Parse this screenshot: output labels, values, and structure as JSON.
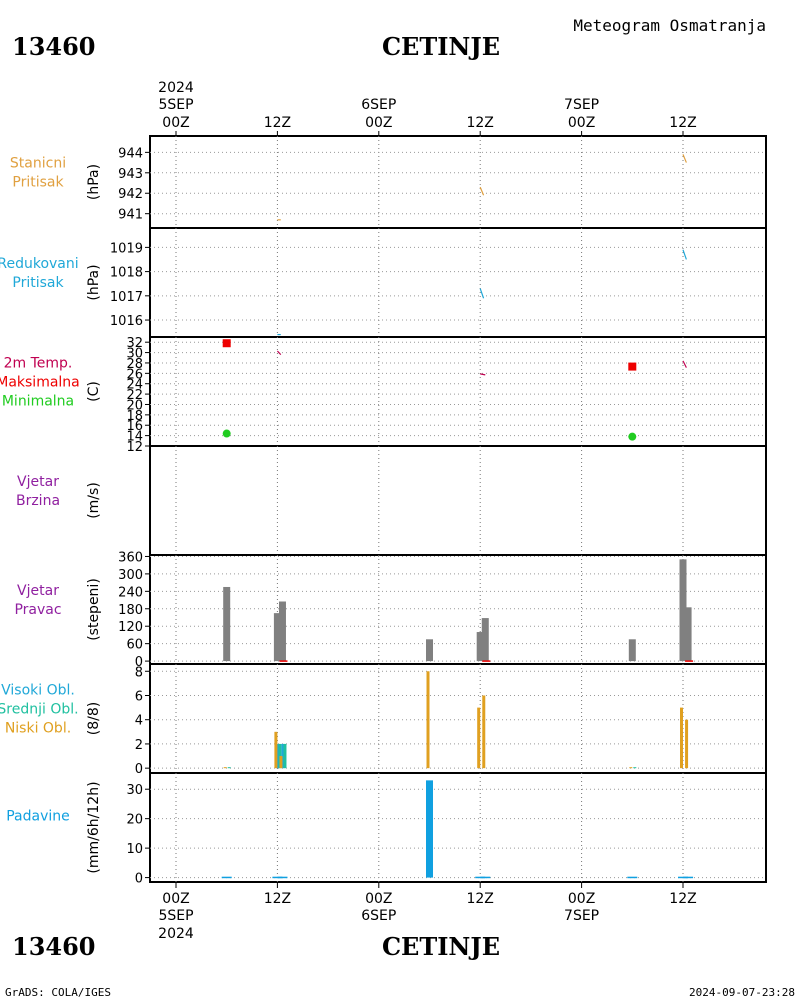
{
  "header": {
    "station_id": "13460",
    "station_name": "CETINJE",
    "product_title": "Meteogram Osmatranja"
  },
  "footer": {
    "station_id": "13460",
    "station_name": "CETINJE",
    "credit": "GrADS: COLA/IGES",
    "timestamp": "2024-09-07-23:28"
  },
  "time_axis": {
    "top_labels": [
      {
        "line1": "2024",
        "line2": "5SEP",
        "line3": "00Z"
      },
      {
        "line1": "",
        "line2": "",
        "line3": "12Z"
      },
      {
        "line1": "",
        "line2": "6SEP",
        "line3": "00Z"
      },
      {
        "line1": "",
        "line2": "",
        "line3": "12Z"
      },
      {
        "line1": "",
        "line2": "7SEP",
        "line3": "00Z"
      },
      {
        "line1": "",
        "line2": "",
        "line3": "12Z"
      }
    ],
    "bottom_labels": [
      {
        "line1": "00Z",
        "line2": "5SEP",
        "line3": "2024"
      },
      {
        "line1": "12Z",
        "line2": "",
        "line3": ""
      },
      {
        "line1": "00Z",
        "line2": "6SEP",
        "line3": ""
      },
      {
        "line1": "12Z",
        "line2": "",
        "line3": ""
      },
      {
        "line1": "00Z",
        "line2": "7SEP",
        "line3": ""
      },
      {
        "line1": "12Z",
        "line2": "",
        "line3": ""
      }
    ]
  },
  "colors": {
    "station_pressure": "#e0a040",
    "reduced_pressure": "#20a8d8",
    "temp_label": "#c00050",
    "temp_max": "#ee0000",
    "temp_min": "#20cc20",
    "wind": "#9020a0",
    "gray_bar": "#808080",
    "dir_marker": "#ee0000",
    "cloud_high": "#20a8d8",
    "cloud_mid": "#20c0a0",
    "cloud_low": "#e0a020",
    "precip": "#10a0e0"
  },
  "chart_data": [
    {
      "type": "line",
      "label_lines": [
        "Stanicni",
        "Pritisak"
      ],
      "ylabel": "(hPa)",
      "ylim": [
        940.3,
        944.8
      ],
      "yticks": [
        "941",
        "942",
        "943",
        "944"
      ],
      "series": [
        {
          "x": [
            12,
            12.4
          ],
          "values": [
            940.7,
            940.7
          ]
        },
        {
          "x": [
            36,
            36.4
          ],
          "values": [
            942.3,
            941.9
          ]
        },
        {
          "x": [
            60,
            60.4
          ],
          "values": [
            943.9,
            943.5
          ]
        }
      ]
    },
    {
      "type": "line",
      "label_lines": [
        "Redukovani",
        "Pritisak"
      ],
      "ylabel": "(hPa)",
      "ylim": [
        1015.3,
        1019.8
      ],
      "yticks": [
        "1016",
        "1017",
        "1018",
        "1019"
      ],
      "series": [
        {
          "x": [
            12,
            12.4
          ],
          "values": [
            1015.4,
            1015.4
          ]
        },
        {
          "x": [
            36,
            36.4
          ],
          "values": [
            1017.3,
            1016.9
          ]
        },
        {
          "x": [
            60,
            60.4
          ],
          "values": [
            1018.9,
            1018.5
          ]
        }
      ]
    },
    {
      "type": "scatter",
      "label_lines": [
        "2m Temp.",
        "Maksimalna",
        "Minimalna"
      ],
      "ylabel": "(C)",
      "ylim": [
        12,
        33
      ],
      "yticks": [
        "12",
        "14",
        "16",
        "18",
        "20",
        "22",
        "24",
        "26",
        "28",
        "30",
        "32"
      ],
      "line_segments": [
        {
          "x": [
            12,
            12.4
          ],
          "values": [
            30.3,
            29.6
          ]
        },
        {
          "x": [
            36,
            36.6
          ],
          "values": [
            25.9,
            25.7
          ]
        },
        {
          "x": [
            60,
            60.4
          ],
          "values": [
            28.4,
            27.1
          ]
        }
      ],
      "max_points": [
        {
          "x": 6,
          "value": 31.8
        },
        {
          "x": 54,
          "value": 27.3
        }
      ],
      "min_points": [
        {
          "x": 6,
          "value": 14.4
        },
        {
          "x": 54,
          "value": 13.8
        }
      ]
    },
    {
      "type": "bar",
      "label_lines": [
        "Vjetar",
        "Brzina"
      ],
      "ylabel": "(m/s)",
      "series": []
    },
    {
      "type": "bar",
      "label_lines": [
        "Vjetar",
        "Pravac"
      ],
      "ylabel": "(stepeni)",
      "ylim": [
        -10,
        365
      ],
      "yticks": [
        "0",
        "60",
        "120",
        "180",
        "240",
        "300",
        "360"
      ],
      "x": [
        6,
        12,
        12.6,
        30,
        36,
        36.6,
        54,
        60,
        60.6
      ],
      "values": [
        255,
        165,
        205,
        75,
        100,
        148,
        75,
        350,
        185
      ],
      "dir_markers_x": [
        12.6,
        36.6,
        60.6
      ]
    },
    {
      "type": "bar",
      "label_lines": [
        "Visoki Obl.",
        "Srednji Obl.",
        "Niski Obl."
      ],
      "ylabel": "(8/8)",
      "ylim": [
        -0.4,
        8.6
      ],
      "yticks": [
        "0",
        "2",
        "4",
        "6",
        "8"
      ],
      "bars": [
        {
          "x": 6,
          "values": [
            0,
            0.08,
            0.08
          ]
        },
        {
          "x": 12,
          "values": [
            2,
            2,
            3
          ]
        },
        {
          "x": 12.6,
          "values": [
            2,
            2,
            1
          ]
        },
        {
          "x": 30,
          "values": [
            0,
            0,
            8
          ]
        },
        {
          "x": 36,
          "values": [
            0,
            0,
            5
          ]
        },
        {
          "x": 36.6,
          "values": [
            0,
            0,
            6
          ]
        },
        {
          "x": 54,
          "values": [
            0,
            0.08,
            0.08
          ]
        },
        {
          "x": 60,
          "values": [
            0,
            0,
            5
          ]
        },
        {
          "x": 60.6,
          "values": [
            0,
            0,
            4
          ]
        }
      ],
      "series_names": [
        "Visoki Obl.",
        "Srednji Obl.",
        "Niski Obl."
      ]
    },
    {
      "type": "bar",
      "label_lines": [
        "Padavine"
      ],
      "ylabel": "(mm/6h/12h)",
      "ylim": [
        -1.5,
        35.5
      ],
      "yticks": [
        "0",
        "10",
        "20",
        "30"
      ],
      "x": [
        6,
        12,
        12.6,
        30,
        36,
        36.6,
        54,
        60,
        60.6
      ],
      "values": [
        0.3,
        0.3,
        0.3,
        33,
        0.3,
        0.3,
        0.3,
        0.3,
        0.3
      ]
    }
  ]
}
